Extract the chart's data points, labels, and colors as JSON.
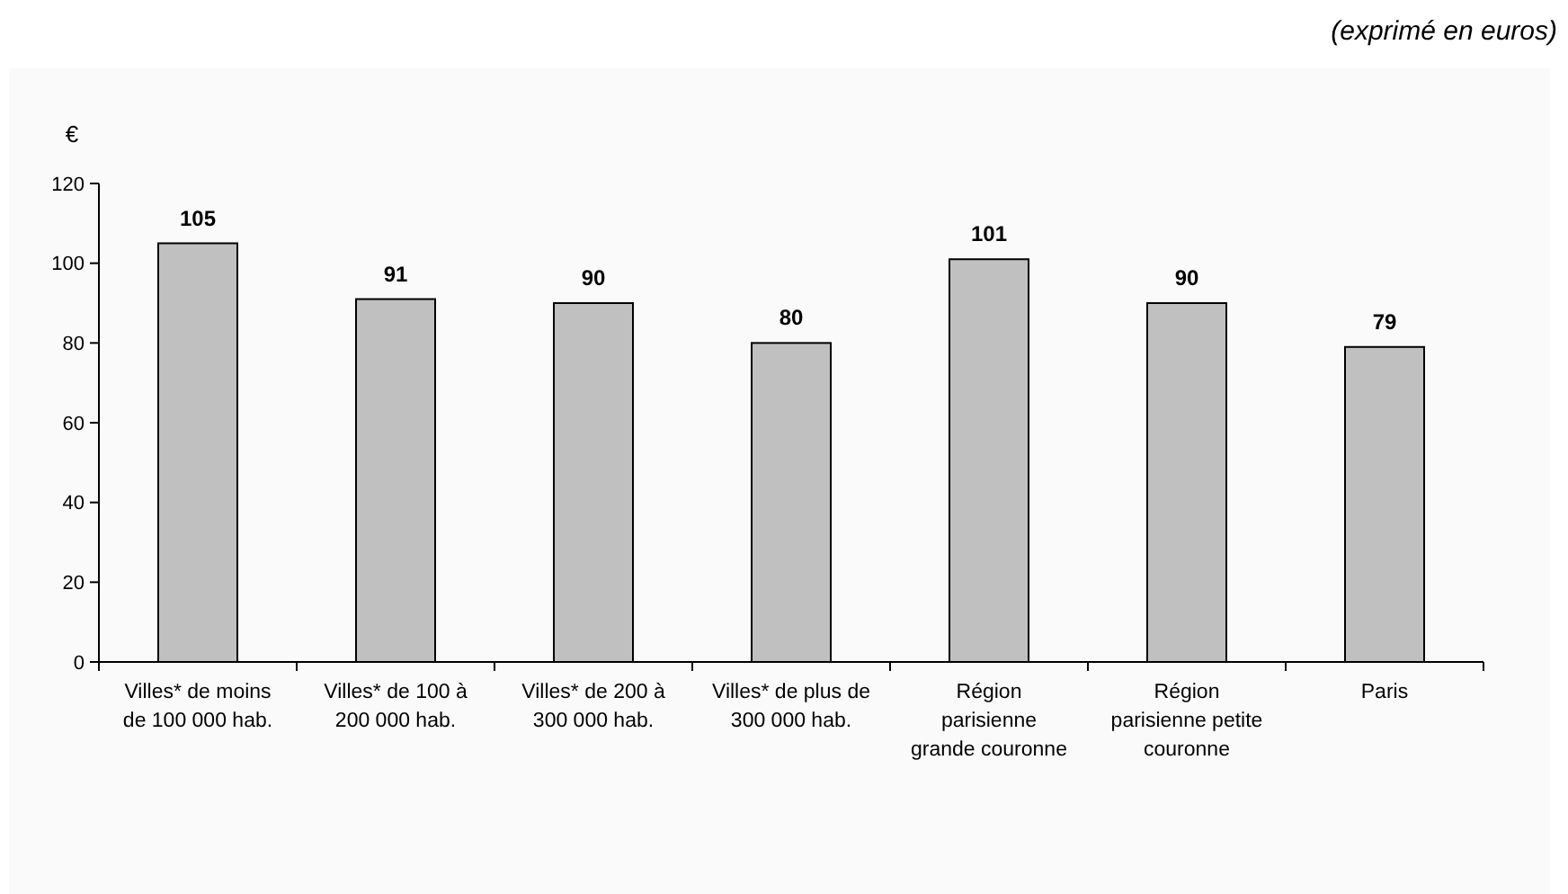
{
  "chart_data": {
    "type": "bar",
    "subtitle": "(exprimé en euros)",
    "ylabel": "€",
    "categories": [
      "Villes* de moins de 100 000 hab.",
      "Villes* de 100 à 200 000 hab.",
      "Villes* de 200 à 300 000 hab.",
      "Villes* de plus de 300 000 hab.",
      "Région parisienne grande couronne",
      "Région parisienne petite couronne",
      "Paris"
    ],
    "values": [
      105,
      91,
      90,
      80,
      101,
      90,
      79
    ],
    "color": "#c0c0c0",
    "ylim": [
      0,
      120
    ],
    "yticks": [
      0,
      20,
      40,
      60,
      80,
      100,
      120
    ],
    "data_labels": true,
    "grid": false
  }
}
